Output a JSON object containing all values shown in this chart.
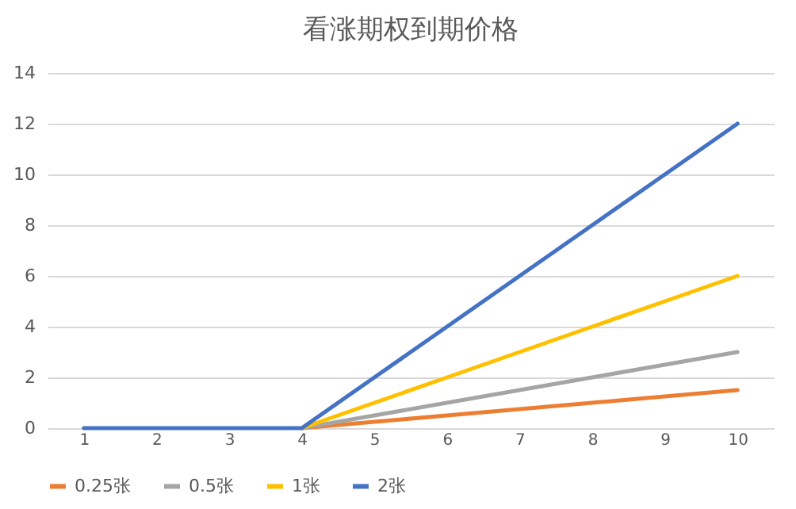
{
  "chart_data": {
    "type": "line",
    "title": "看涨期权到期价格",
    "categories": [
      "1",
      "2",
      "3",
      "4",
      "5",
      "6",
      "7",
      "8",
      "9",
      "10"
    ],
    "series": [
      {
        "name": "0.25张",
        "color": "#ed7d31",
        "values": [
          null,
          null,
          null,
          0,
          0.25,
          0.5,
          0.75,
          1,
          1.25,
          1.5
        ]
      },
      {
        "name": "0.5张",
        "color": "#a5a5a5",
        "values": [
          null,
          null,
          null,
          0,
          0.5,
          1,
          1.5,
          2,
          2.5,
          3
        ]
      },
      {
        "name": "1张",
        "color": "#ffc000",
        "values": [
          null,
          null,
          null,
          0,
          1,
          2,
          3,
          4,
          5,
          6
        ]
      },
      {
        "name": "2张",
        "color": "#4472c4",
        "values": [
          0,
          0,
          0,
          0,
          2,
          4,
          6,
          8,
          10,
          12
        ]
      }
    ],
    "ylim": [
      0,
      14
    ],
    "yticks": [
      0,
      2,
      4,
      6,
      8,
      10,
      12,
      14
    ],
    "grid": "y",
    "legend": "bottom"
  }
}
